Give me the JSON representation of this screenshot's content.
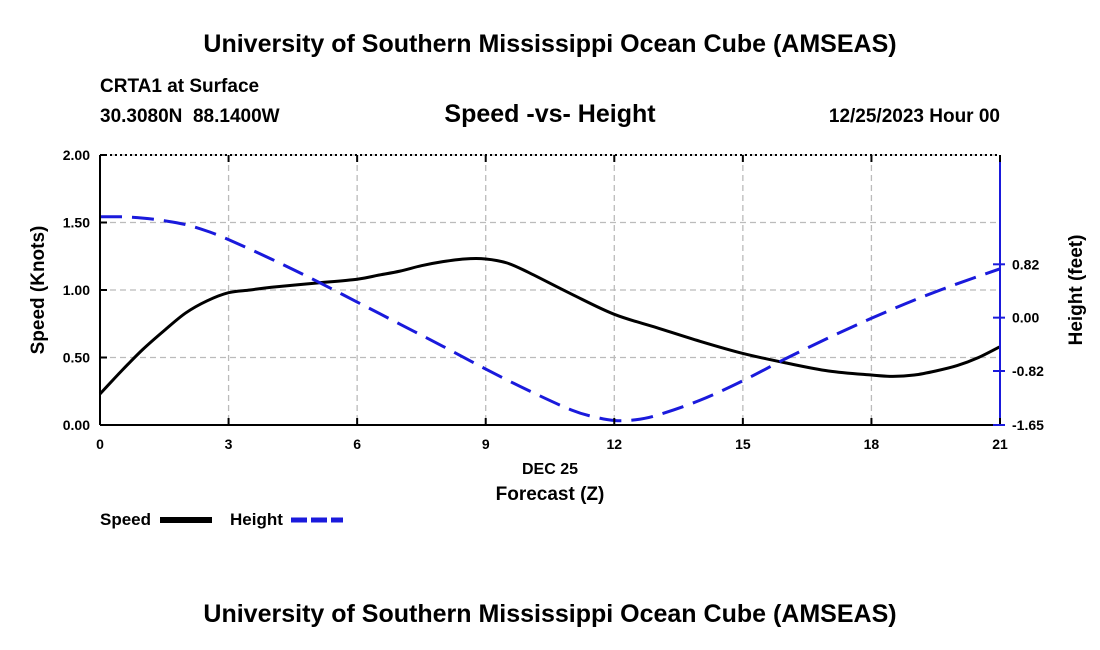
{
  "header": {
    "title": "University of Southern Mississippi Ocean Cube (AMSEAS)",
    "station": "CRTA1 at Surface",
    "coords": "30.3080N  88.1400W",
    "chart_title": "Speed -vs- Height",
    "datetime": "12/25/2023 Hour 00"
  },
  "legend": {
    "speed_label": "Speed",
    "height_label": "Height"
  },
  "footer": {
    "title": "University of Southern Mississippi Ocean Cube (AMSEAS)"
  },
  "colors": {
    "speed": "#000000",
    "height": "#1a1adc",
    "grid": "#bbbbbb"
  },
  "chart_data": {
    "type": "line",
    "title": "Speed -vs- Height",
    "xlabel": "Forecast (Z)",
    "xlabel_date": "DEC 25",
    "ylabel": "Speed (Knots)",
    "ylabel_right": "Height (feet)",
    "xlim": [
      0,
      21
    ],
    "ylim": [
      0,
      2
    ],
    "ylim_right": [
      -1.65,
      2.5
    ],
    "x_ticks": [
      0,
      3,
      6,
      9,
      12,
      15,
      18,
      21
    ],
    "y_ticks": [
      "0.00",
      "0.50",
      "1.00",
      "1.50",
      "2.00"
    ],
    "y_ticks_right": [
      "-1.65",
      "-0.82",
      "0.00",
      "0.82"
    ],
    "y_ticks_right_values": [
      -1.65,
      -0.82,
      0.0,
      0.82
    ],
    "grid": true,
    "legend_position": "bottom-left",
    "series": [
      {
        "name": "Speed",
        "axis": "left",
        "style": "solid",
        "x": [
          0,
          0.5,
          1,
          1.5,
          2,
          2.5,
          3,
          3.5,
          4,
          5,
          6,
          6.5,
          7,
          7.5,
          8,
          8.5,
          9,
          9.5,
          10,
          11,
          12,
          13,
          14,
          15,
          16,
          17,
          18,
          18.5,
          19,
          19.5,
          20,
          20.5,
          21
        ],
        "values": [
          0.23,
          0.4,
          0.56,
          0.7,
          0.83,
          0.92,
          0.98,
          1.0,
          1.02,
          1.05,
          1.08,
          1.11,
          1.14,
          1.18,
          1.21,
          1.23,
          1.23,
          1.2,
          1.13,
          0.97,
          0.82,
          0.72,
          0.62,
          0.53,
          0.46,
          0.4,
          0.37,
          0.36,
          0.37,
          0.4,
          0.44,
          0.5,
          0.58
        ]
      },
      {
        "name": "Height",
        "axis": "right",
        "style": "dashed",
        "x": [
          0,
          0.5,
          1,
          1.5,
          2,
          2.5,
          3,
          4,
          5,
          6,
          7,
          8,
          9,
          10,
          11,
          11.5,
          12,
          12.5,
          13,
          14,
          15,
          16,
          17,
          18,
          19,
          20,
          21
        ],
        "values": [
          1.55,
          1.55,
          1.53,
          1.49,
          1.43,
          1.33,
          1.2,
          0.9,
          0.58,
          0.24,
          -0.1,
          -0.44,
          -0.79,
          -1.12,
          -1.42,
          -1.52,
          -1.58,
          -1.57,
          -1.5,
          -1.27,
          -0.97,
          -0.63,
          -0.31,
          -0.01,
          0.27,
          0.52,
          0.75
        ]
      }
    ]
  }
}
